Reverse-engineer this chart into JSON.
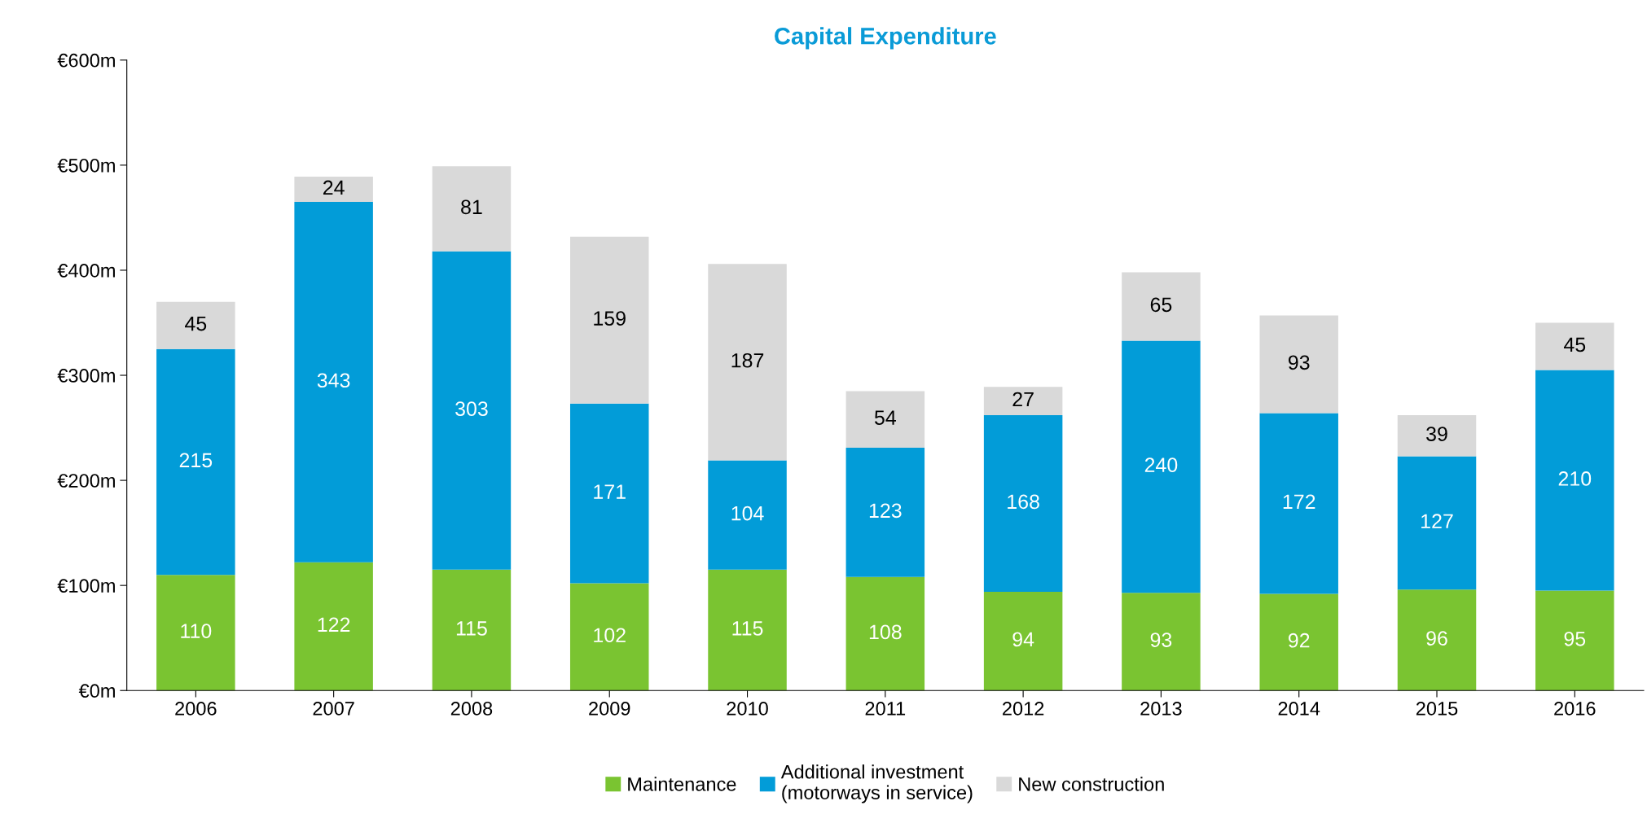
{
  "chart_data": {
    "type": "bar",
    "stacked": true,
    "title": "Capital Expenditure",
    "categories": [
      "2006",
      "2007",
      "2008",
      "2009",
      "2010",
      "2011",
      "2012",
      "2013",
      "2014",
      "2015",
      "2016"
    ],
    "series": [
      {
        "name": "Maintenance",
        "color": "#7ac431",
        "values": [
          110,
          122,
          115,
          102,
          115,
          108,
          94,
          93,
          92,
          96,
          95
        ]
      },
      {
        "name": "Additional investment\n(motorways in service)",
        "color": "#029cd8",
        "values": [
          215,
          343,
          303,
          171,
          104,
          123,
          168,
          240,
          172,
          127,
          210
        ]
      },
      {
        "name": "New construction",
        "color": "#d9d9d9",
        "values": [
          45,
          24,
          81,
          159,
          187,
          54,
          27,
          65,
          93,
          39,
          45
        ]
      }
    ],
    "ylim": [
      0,
      600
    ],
    "yticks": [
      {
        "value": 0,
        "label": "€0m"
      },
      {
        "value": 100,
        "label": "€100m"
      },
      {
        "value": 200,
        "label": "€200m"
      },
      {
        "value": 300,
        "label": "€300m"
      },
      {
        "value": 400,
        "label": "€400m"
      },
      {
        "value": 500,
        "label": "€500m"
      },
      {
        "value": 600,
        "label": "€600m"
      }
    ],
    "data_labels": true,
    "grid": false,
    "legend": "bottom"
  }
}
